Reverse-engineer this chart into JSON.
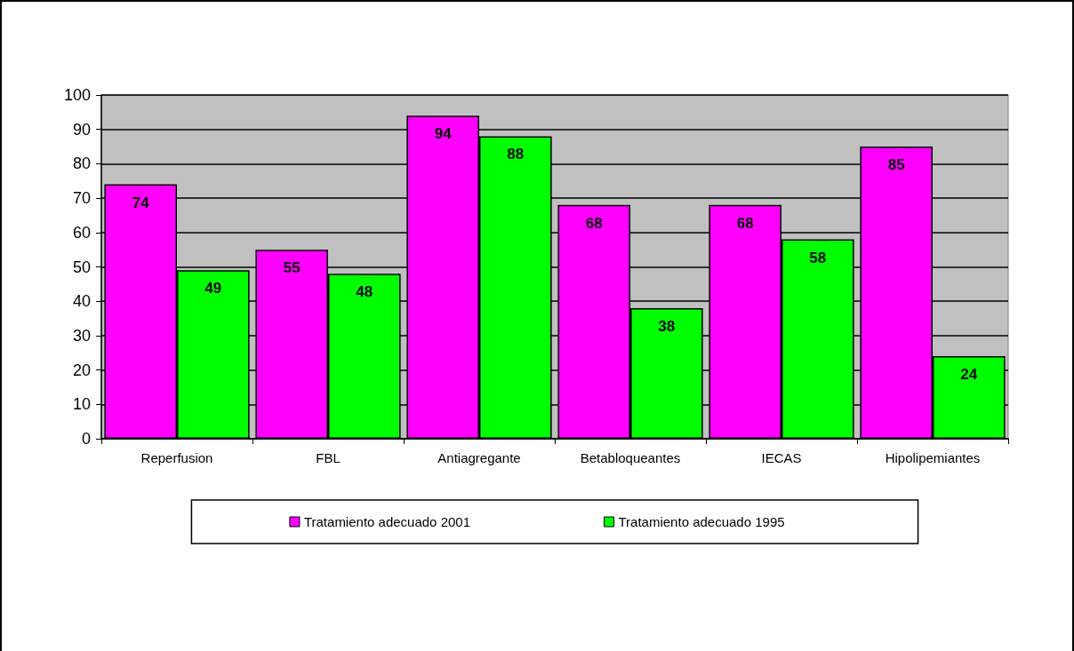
{
  "chart_data": {
    "type": "bar",
    "categories": [
      "Reperfusion",
      "FBL",
      "Antiagregante",
      "Betabloqueantes",
      "IECAS",
      "Hipolipemiantes"
    ],
    "series": [
      {
        "name": "Tratamiento adecuado 2001",
        "color": "#ff00ff",
        "values": [
          74,
          55,
          94,
          68,
          68,
          85
        ]
      },
      {
        "name": "Tratamiento adecuado 1995",
        "color": "#00ff00",
        "values": [
          49,
          48,
          88,
          38,
          58,
          24
        ]
      }
    ],
    "ylim": [
      0,
      100
    ],
    "yticks": [
      0,
      10,
      20,
      30,
      40,
      50,
      60,
      70,
      80,
      90,
      100
    ],
    "grid": "y",
    "legend": "bottom",
    "data_labels": true
  }
}
